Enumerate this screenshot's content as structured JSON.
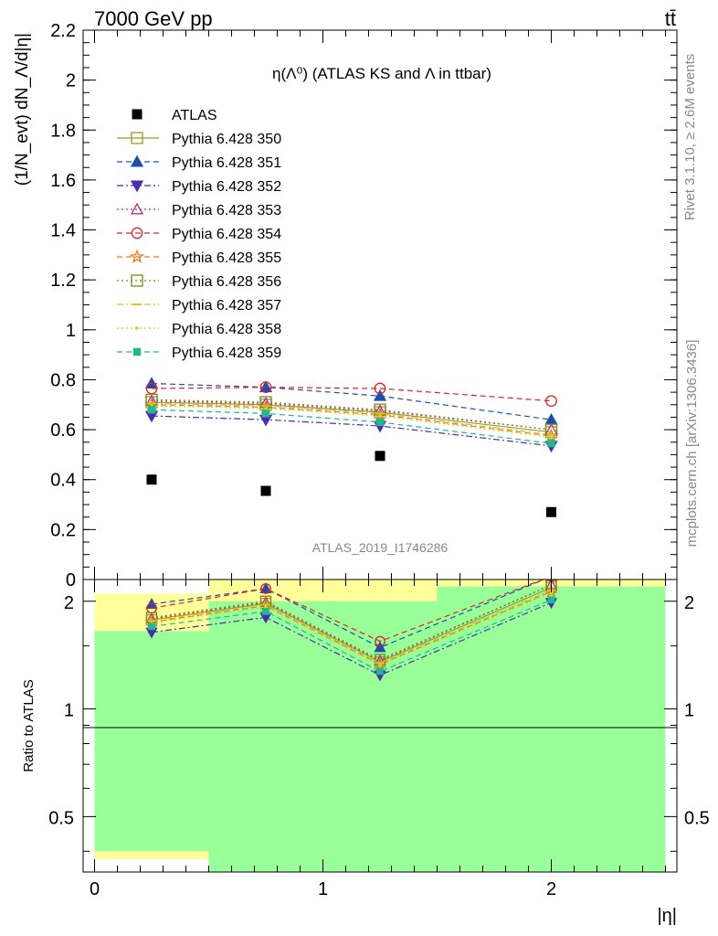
{
  "header": {
    "left": "7000 GeV pp",
    "right": "tt̄"
  },
  "side_texts": {
    "rivet": "Rivet 3.1.10, ≥ 2.6M events",
    "mcplots": "mcplots.cern.ch [arXiv:1306.3436]"
  },
  "chart_data": {
    "type": "scatter",
    "title": "η(Λ⁰) (ATLAS KS and Λ in ttbar)",
    "watermark": "ATLAS_2019_I1746286",
    "xlabel": "|η|",
    "ylabel": "(1/N_evt) dN_Λ/d|η|",
    "ratio_ylabel": "Ratio to ATLAS",
    "xlim": [
      -0.05,
      2.55
    ],
    "ylim": [
      0,
      2.2
    ],
    "ratio_ylim": [
      0.35,
      2.3
    ],
    "ratio_log": true,
    "x_ticks": [
      "0",
      "1",
      "2"
    ],
    "y_ticks": [
      "0",
      "0.2",
      "0.4",
      "0.6",
      "0.8",
      "1",
      "1.2",
      "1.4",
      "1.6",
      "1.8",
      "2",
      "2.2"
    ],
    "ratio_ticks": [
      "0.5",
      "1",
      "2"
    ],
    "bins": [
      [
        0,
        0.5
      ],
      [
        0.5,
        1.0
      ],
      [
        1.0,
        1.5
      ],
      [
        1.5,
        2.5
      ]
    ],
    "x": [
      0.25,
      0.75,
      1.25,
      2.0
    ],
    "data": {
      "name": "ATLAS",
      "values": [
        0.4,
        0.355,
        0.495,
        0.27
      ]
    },
    "band_yellow": [
      [
        0.38,
        2.1
      ],
      [
        0.3,
        2.5
      ],
      [
        0.3,
        2.5
      ],
      [
        0.3,
        2.5
      ]
    ],
    "band_green": [
      [
        0.4,
        1.65
      ],
      [
        0.3,
        2.0
      ],
      [
        0.3,
        2.0
      ],
      [
        0.3,
        2.2
      ]
    ],
    "series": [
      {
        "name": "Pythia 6.428 350",
        "color": "#9a9a2e",
        "marker": "square-open",
        "dash": "solid",
        "values": [
          0.71,
          0.7,
          0.67,
          0.59
        ]
      },
      {
        "name": "Pythia 6.428 351",
        "color": "#1a4fb0",
        "marker": "triangle-up",
        "dash": "dashed",
        "values": [
          0.785,
          0.77,
          0.735,
          0.64
        ]
      },
      {
        "name": "Pythia 6.428 352",
        "color": "#4a2cb0",
        "marker": "triangle-down",
        "dash": "dashdot",
        "values": [
          0.655,
          0.64,
          0.615,
          0.535
        ]
      },
      {
        "name": "Pythia 6.428 353",
        "color": "#b0308a",
        "marker": "triangle-up-open",
        "dash": "dotted",
        "values": [
          0.715,
          0.705,
          0.675,
          0.6
        ]
      },
      {
        "name": "Pythia 6.428 354",
        "color": "#e0202a",
        "marker": "circle-open",
        "dash": "dashed",
        "values": [
          0.765,
          0.77,
          0.765,
          0.715
        ]
      },
      {
        "name": "Pythia 6.428 355",
        "color": "#f07820",
        "marker": "star-open",
        "dash": "dashed",
        "values": [
          0.7,
          0.69,
          0.66,
          0.575
        ]
      },
      {
        "name": "Pythia 6.428 356",
        "color": "#7a8a10",
        "marker": "square-open",
        "dash": "dotted",
        "values": [
          0.72,
          0.71,
          0.68,
          0.6
        ]
      },
      {
        "name": "Pythia 6.428 357",
        "color": "#e0c020",
        "marker": "dash",
        "dash": "dashdot",
        "values": [
          0.705,
          0.695,
          0.665,
          0.58
        ]
      },
      {
        "name": "Pythia 6.428 358",
        "color": "#c8d820",
        "marker": "dot",
        "dash": "dotted",
        "values": [
          0.695,
          0.685,
          0.655,
          0.57
        ]
      },
      {
        "name": "Pythia 6.428 359",
        "color": "#20b890",
        "marker": "square-filled",
        "dash": "dashed",
        "values": [
          0.68,
          0.665,
          0.63,
          0.545
        ]
      }
    ]
  }
}
